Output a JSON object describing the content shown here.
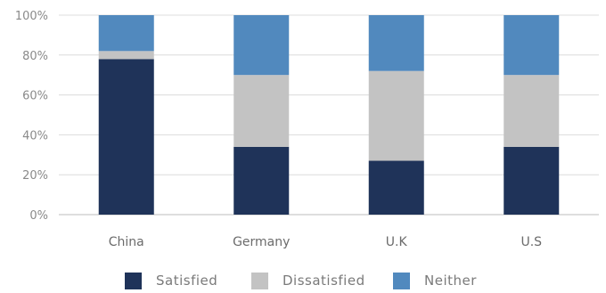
{
  "chart_data": {
    "type": "bar",
    "stacked": true,
    "title": "",
    "xlabel": "",
    "ylabel": "",
    "categories": [
      "China",
      "Germany",
      "U.K",
      "U.S"
    ],
    "series": [
      {
        "name": "Satisfied",
        "color": "#1f3359",
        "values": [
          78,
          34,
          27,
          34
        ]
      },
      {
        "name": "Dissatisfied",
        "color": "#c3c3c3",
        "values": [
          4,
          36,
          45,
          36
        ]
      },
      {
        "name": "Neither",
        "color": "#5189be",
        "values": [
          18,
          30,
          28,
          30
        ]
      }
    ],
    "ylim": [
      0,
      100
    ],
    "yticks": [
      "0%",
      "20%",
      "40%",
      "60%",
      "80%",
      "100%"
    ],
    "grid": true,
    "legend": "bottom"
  }
}
